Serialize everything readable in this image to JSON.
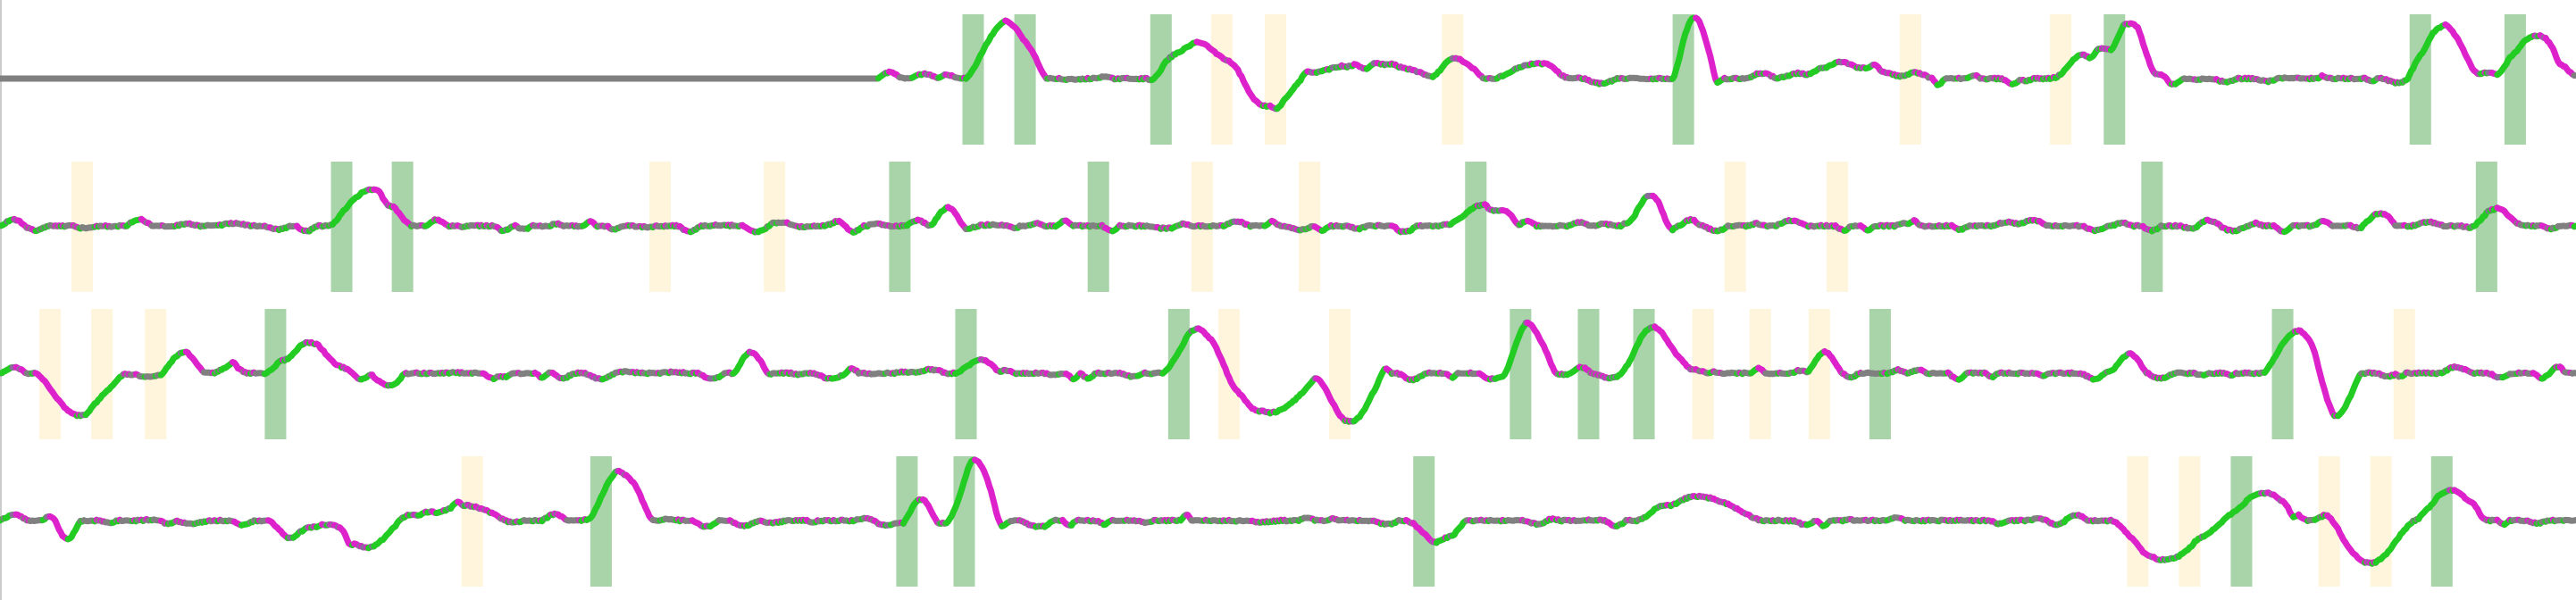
{
  "colors": {
    "background": "#ffffff",
    "baseline": "#808080",
    "rise": "#22cc22",
    "fall": "#dd22cc",
    "mixed": "#8a6e9a",
    "highlight_strong": "#a9d3a9",
    "highlight_faint": "#fff5dc"
  },
  "chart_data": {
    "type": "line",
    "description_free": true,
    "x_range": [
      0,
      1440
    ],
    "y_range": [
      -1,
      1
    ],
    "grid": false,
    "rows": [
      {
        "baseline": 0.0,
        "flat_until": 490,
        "bursts": [
          {
            "x": 540,
            "len": 45,
            "amp": 0.9,
            "sign": 1
          },
          {
            "x": 640,
            "len": 60,
            "amp": 0.6,
            "sign": 1
          },
          {
            "x": 690,
            "len": 40,
            "amp": 0.45,
            "sign": -1
          },
          {
            "x": 720,
            "len": 90,
            "amp": 0.25,
            "sign": 1
          },
          {
            "x": 800,
            "len": 30,
            "amp": 0.3,
            "sign": 1
          },
          {
            "x": 835,
            "len": 50,
            "amp": 0.25,
            "sign": 1
          },
          {
            "x": 935,
            "len": 25,
            "amp": 1.0,
            "sign": 1
          },
          {
            "x": 990,
            "len": 80,
            "amp": 0.2,
            "sign": 1
          },
          {
            "x": 1150,
            "len": 50,
            "amp": 0.5,
            "sign": 1
          },
          {
            "x": 1180,
            "len": 25,
            "amp": 0.8,
            "sign": 1
          },
          {
            "x": 1345,
            "len": 40,
            "amp": 0.9,
            "sign": 1
          },
          {
            "x": 1395,
            "len": 45,
            "amp": 0.7,
            "sign": 1
          }
        ],
        "strong": [
          [
            538,
            550
          ],
          [
            567,
            579
          ],
          [
            643,
            655
          ],
          [
            935,
            947
          ],
          [
            1176,
            1188
          ],
          [
            1347,
            1359
          ],
          [
            1400,
            1412
          ]
        ],
        "faint": [
          [
            677,
            689
          ],
          [
            707,
            719
          ],
          [
            806,
            818
          ],
          [
            1062,
            1074
          ],
          [
            1146,
            1158
          ]
        ]
      },
      {
        "baseline": 0.0,
        "flat_until": 0,
        "bursts": [
          {
            "x": 185,
            "len": 45,
            "amp": 0.6,
            "sign": 1
          },
          {
            "x": 520,
            "len": 20,
            "amp": 0.3,
            "sign": 1
          },
          {
            "x": 810,
            "len": 40,
            "amp": 0.35,
            "sign": 1
          },
          {
            "x": 910,
            "len": 25,
            "amp": 0.5,
            "sign": 1
          },
          {
            "x": 1320,
            "len": 20,
            "amp": 0.2,
            "sign": 1
          },
          {
            "x": 1380,
            "len": 30,
            "amp": 0.25,
            "sign": 1
          }
        ],
        "strong": [
          [
            185,
            197
          ],
          [
            219,
            231
          ],
          [
            497,
            509
          ],
          [
            608,
            620
          ],
          [
            819,
            831
          ],
          [
            1197,
            1209
          ],
          [
            1384,
            1396
          ]
        ],
        "faint": [
          [
            40,
            52
          ],
          [
            363,
            375
          ],
          [
            427,
            439
          ],
          [
            666,
            678
          ],
          [
            726,
            738
          ],
          [
            964,
            976
          ],
          [
            1021,
            1033
          ]
        ]
      },
      {
        "baseline": 0.0,
        "flat_until": 0,
        "bursts": [
          {
            "x": 20,
            "len": 50,
            "amp": 0.7,
            "sign": -1
          },
          {
            "x": 90,
            "len": 25,
            "amp": 0.35,
            "sign": 1
          },
          {
            "x": 148,
            "len": 50,
            "amp": 0.5,
            "sign": 1
          },
          {
            "x": 205,
            "len": 25,
            "amp": 0.2,
            "sign": -1
          },
          {
            "x": 410,
            "len": 20,
            "amp": 0.35,
            "sign": 1
          },
          {
            "x": 535,
            "len": 25,
            "amp": 0.25,
            "sign": 1
          },
          {
            "x": 650,
            "len": 40,
            "amp": 0.65,
            "sign": 1
          },
          {
            "x": 680,
            "len": 60,
            "amp": 0.65,
            "sign": -1
          },
          {
            "x": 735,
            "len": 40,
            "amp": 0.8,
            "sign": -1
          },
          {
            "x": 840,
            "len": 30,
            "amp": 0.85,
            "sign": 1
          },
          {
            "x": 905,
            "len": 40,
            "amp": 0.75,
            "sign": 1
          },
          {
            "x": 1010,
            "len": 20,
            "amp": 0.35,
            "sign": 1
          },
          {
            "x": 1180,
            "len": 20,
            "amp": 0.3,
            "sign": 1
          },
          {
            "x": 1265,
            "len": 40,
            "amp": 0.7,
            "sign": 1
          },
          {
            "x": 1292,
            "len": 28,
            "amp": 0.7,
            "sign": -1
          }
        ],
        "strong": [
          [
            148,
            160
          ],
          [
            534,
            546
          ],
          [
            653,
            665
          ],
          [
            844,
            856
          ],
          [
            882,
            894
          ],
          [
            913,
            925
          ],
          [
            1045,
            1057
          ],
          [
            1270,
            1282
          ]
        ],
        "faint": [
          [
            22,
            34
          ],
          [
            51,
            63
          ],
          [
            81,
            93
          ],
          [
            681,
            693
          ],
          [
            743,
            755
          ],
          [
            946,
            958
          ],
          [
            978,
            990
          ],
          [
            1011,
            1023
          ],
          [
            1338,
            1350
          ]
        ]
      },
      {
        "baseline": 0.0,
        "flat_until": 0,
        "bursts": [
          {
            "x": 30,
            "len": 15,
            "amp": 0.3,
            "sign": -1
          },
          {
            "x": 150,
            "len": 30,
            "amp": 0.3,
            "sign": -1
          },
          {
            "x": 185,
            "len": 40,
            "amp": 0.45,
            "sign": -1
          },
          {
            "x": 235,
            "len": 50,
            "amp": 0.25,
            "sign": 1
          },
          {
            "x": 330,
            "len": 35,
            "amp": 0.85,
            "sign": 1
          },
          {
            "x": 505,
            "len": 20,
            "amp": 0.35,
            "sign": 1
          },
          {
            "x": 530,
            "len": 30,
            "amp": 1.0,
            "sign": 1
          },
          {
            "x": 790,
            "len": 30,
            "amp": 0.4,
            "sign": -1
          },
          {
            "x": 915,
            "len": 70,
            "amp": 0.4,
            "sign": 1
          },
          {
            "x": 1180,
            "len": 60,
            "amp": 0.65,
            "sign": -1
          },
          {
            "x": 1240,
            "len": 50,
            "amp": 0.45,
            "sign": 1
          },
          {
            "x": 1300,
            "len": 50,
            "amp": 0.7,
            "sign": -1
          },
          {
            "x": 1350,
            "len": 40,
            "amp": 0.5,
            "sign": 1
          }
        ],
        "strong": [
          [
            330,
            342
          ],
          [
            501,
            513
          ],
          [
            533,
            545
          ],
          [
            790,
            802
          ],
          [
            1247,
            1259
          ],
          [
            1359,
            1371
          ]
        ],
        "faint": [
          [
            258,
            270
          ],
          [
            1189,
            1201
          ],
          [
            1218,
            1230
          ],
          [
            1296,
            1308
          ],
          [
            1325,
            1337
          ]
        ]
      }
    ]
  }
}
